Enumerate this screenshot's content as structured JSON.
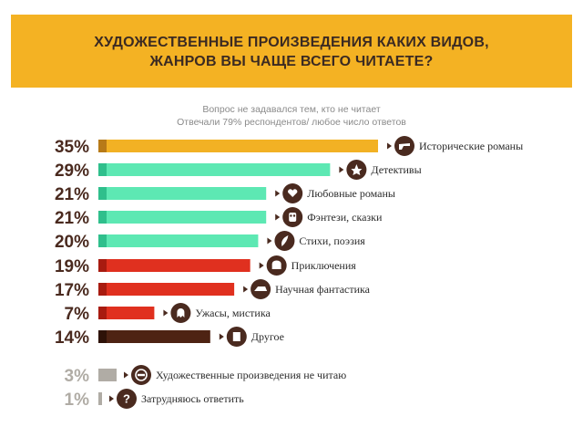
{
  "title": {
    "line1": "ХУДОЖЕСТВЕННЫЕ ПРОИЗВЕДЕНИЯ КАКИХ ВИДОВ,",
    "line2": "ЖАНРОВ ВЫ ЧАЩЕ ВСЕГО ЧИТАЕТЕ?"
  },
  "subtitle": {
    "line1": "Вопрос не задавался тем, кто не читает",
    "line2": "Отвечали 79% респондентов/ любое число ответов"
  },
  "colors": {
    "header": "#f4b223",
    "gold": "#f2b124",
    "mint": "#5de8b3",
    "red": "#e0301f",
    "brown": "#4e2313",
    "gray": "#b0aca5",
    "icon": "#4a2a1f"
  },
  "chart_data": {
    "type": "bar",
    "orientation": "horizontal",
    "unit": "%",
    "xlim": [
      0,
      35
    ],
    "categories": [
      "Исторические романы",
      "Детективы",
      "Любовные романы",
      "Фэнтези, сказки",
      "Стихи, поэзия",
      "Приключения",
      "Научная фантастика",
      "Ужасы, мистика",
      "Другое",
      "Художественные произведения не читаю",
      "Затрудняюсь ответить"
    ],
    "values": [
      35,
      29,
      21,
      21,
      20,
      19,
      17,
      7,
      14,
      3,
      1
    ],
    "value_labels": [
      "35%",
      "29%",
      "21%",
      "21%",
      "20%",
      "19%",
      "17%",
      "7%",
      "14%",
      "3%",
      "1%"
    ],
    "bar_colors": [
      "gold",
      "mint",
      "mint",
      "mint",
      "mint",
      "red",
      "red",
      "red",
      "brown",
      "gray",
      "gray"
    ],
    "icons": [
      "gun-icon",
      "police-badge-icon",
      "heart-icon",
      "owl-icon",
      "quill-icon",
      "treasure-chest-icon",
      "spaceship-icon",
      "ghost-icon",
      "book-icon",
      "no-entry-icon",
      "question-icon"
    ]
  }
}
